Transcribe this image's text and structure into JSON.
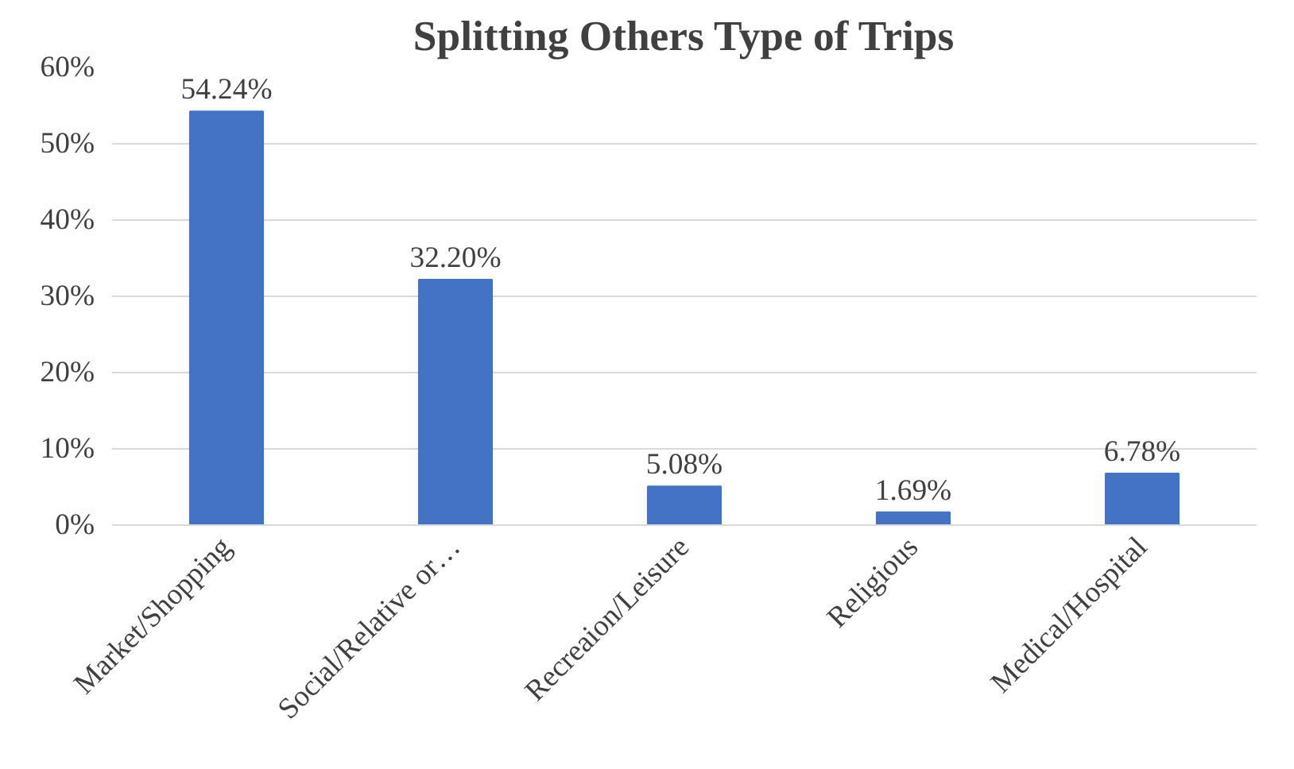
{
  "chart_data": {
    "type": "bar",
    "title": "Splitting Others Type of Trips",
    "categories": [
      "Market/Shopping",
      "Social/Relative or…",
      "Recreaion/Leisure",
      "Religious",
      "Medical/Hospital"
    ],
    "values": [
      54.24,
      32.2,
      5.08,
      1.69,
      6.78
    ],
    "value_labels": [
      "54.24%",
      "32.20%",
      "5.08%",
      "1.69%",
      "6.78%"
    ],
    "color": "#4472c4",
    "ylim": [
      0,
      60
    ],
    "yticks": [
      {
        "value": 0,
        "label": "0%"
      },
      {
        "value": 10,
        "label": "10%"
      },
      {
        "value": 20,
        "label": "20%"
      },
      {
        "value": 30,
        "label": "30%"
      },
      {
        "value": 40,
        "label": "40%"
      },
      {
        "value": 50,
        "label": "50%"
      },
      {
        "value": 60,
        "label": "60%"
      }
    ],
    "grid": "y"
  }
}
